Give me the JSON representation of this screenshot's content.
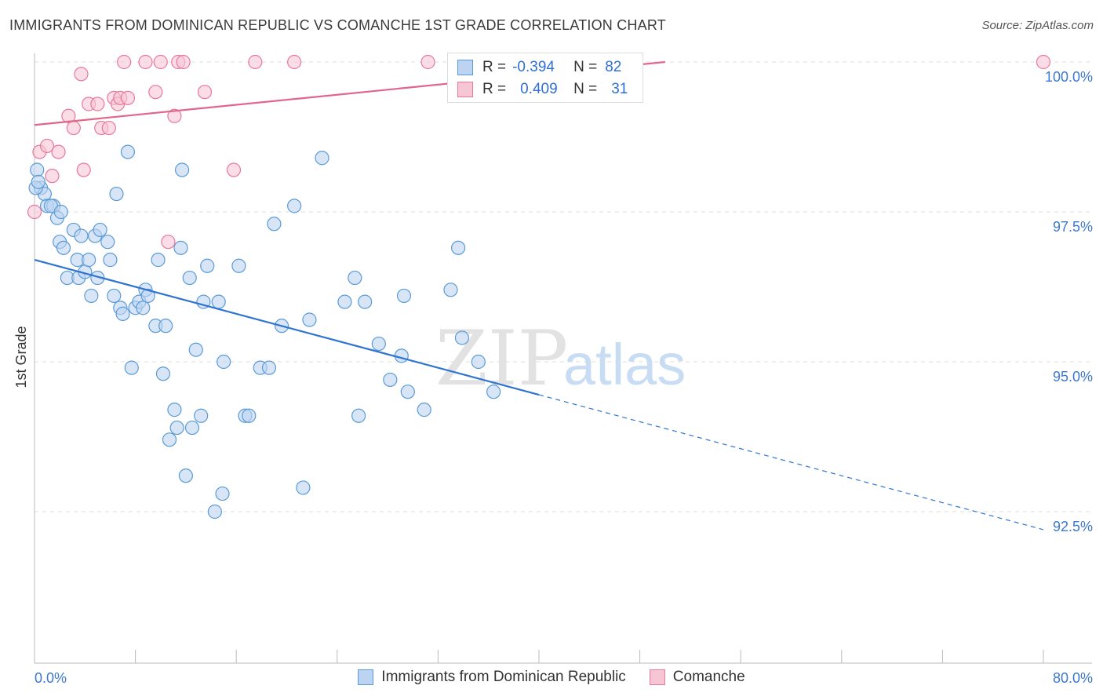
{
  "header": {
    "title": "IMMIGRANTS FROM DOMINICAN REPUBLIC VS COMANCHE 1ST GRADE CORRELATION CHART",
    "source": "Source: ZipAtlas.com"
  },
  "watermark": {
    "zip": "ZIP",
    "atlas": "atlas"
  },
  "legend": {
    "rows": [
      {
        "r_label": "R =",
        "r_value": "-0.394",
        "n_label": "N =",
        "n_value": "82",
        "color": "#5b9bd5",
        "fill": "#bcd4f2"
      },
      {
        "r_label": "R =",
        "r_value": "0.409",
        "n_label": "N =",
        "n_value": "31",
        "color": "#e8799b",
        "fill": "#f7c6d5"
      }
    ]
  },
  "bottom_legend": [
    {
      "label": "Immigrants from Dominican Republic",
      "color": "#5b9bd5",
      "fill": "#bcd4f2"
    },
    {
      "label": "Comanche",
      "color": "#e8799b",
      "fill": "#f7c6d5"
    }
  ],
  "chart_data": {
    "type": "scatter",
    "ylabel": "1st Grade",
    "x_tick_labels": {
      "left": "0.0%",
      "right": "80.0%"
    },
    "xlim": [
      0,
      80
    ],
    "ylim": [
      90.0,
      100.4
    ],
    "y_ticks": [
      {
        "value": 100.0,
        "label": "100.0%"
      },
      {
        "value": 97.5,
        "label": "97.5%"
      },
      {
        "value": 95.0,
        "label": "95.0%"
      },
      {
        "value": 92.5,
        "label": "92.5%"
      }
    ],
    "grid": true,
    "legend_position": "top-center",
    "series": [
      {
        "name": "Immigrants from Dominican Republic",
        "color": "#5b9bd5",
        "fill": "#bcd4f2",
        "trend": {
          "x0": 0,
          "y0": 96.7,
          "x1": 40,
          "y1": 94.45,
          "dash_x1": 80,
          "dash_y1": 92.2
        },
        "points": [
          [
            0.2,
            98.2
          ],
          [
            0.5,
            97.9
          ],
          [
            0.8,
            97.8
          ],
          [
            1.0,
            97.6
          ],
          [
            1.5,
            97.6
          ],
          [
            1.8,
            97.4
          ],
          [
            2.0,
            97.0
          ],
          [
            2.3,
            96.9
          ],
          [
            2.6,
            96.4
          ],
          [
            3.1,
            97.2
          ],
          [
            3.4,
            96.7
          ],
          [
            3.5,
            96.4
          ],
          [
            3.7,
            97.1
          ],
          [
            4.0,
            96.5
          ],
          [
            4.3,
            96.7
          ],
          [
            4.5,
            96.1
          ],
          [
            4.8,
            97.1
          ],
          [
            5.0,
            96.4
          ],
          [
            5.2,
            97.2
          ],
          [
            5.8,
            97.0
          ],
          [
            6.0,
            96.7
          ],
          [
            6.3,
            96.1
          ],
          [
            6.5,
            97.8
          ],
          [
            6.8,
            95.9
          ],
          [
            7.0,
            95.8
          ],
          [
            7.4,
            98.5
          ],
          [
            7.7,
            94.9
          ],
          [
            8.0,
            95.9
          ],
          [
            8.3,
            96.0
          ],
          [
            8.6,
            95.9
          ],
          [
            8.8,
            96.2
          ],
          [
            9.0,
            96.1
          ],
          [
            9.6,
            95.6
          ],
          [
            9.8,
            96.7
          ],
          [
            10.2,
            94.8
          ],
          [
            10.4,
            95.6
          ],
          [
            10.7,
            93.7
          ],
          [
            11.1,
            94.2
          ],
          [
            11.3,
            93.9
          ],
          [
            11.6,
            96.9
          ],
          [
            11.7,
            98.2
          ],
          [
            12.0,
            93.1
          ],
          [
            12.3,
            96.4
          ],
          [
            12.5,
            93.9
          ],
          [
            12.8,
            95.2
          ],
          [
            13.2,
            94.1
          ],
          [
            13.4,
            96.0
          ],
          [
            13.7,
            96.6
          ],
          [
            14.3,
            92.5
          ],
          [
            14.6,
            96.0
          ],
          [
            14.9,
            92.8
          ],
          [
            15.0,
            95.0
          ],
          [
            16.2,
            96.6
          ],
          [
            16.7,
            94.1
          ],
          [
            17.0,
            94.1
          ],
          [
            17.9,
            94.9
          ],
          [
            18.6,
            94.9
          ],
          [
            19.0,
            97.3
          ],
          [
            19.6,
            95.6
          ],
          [
            20.6,
            97.6
          ],
          [
            21.3,
            92.9
          ],
          [
            21.8,
            95.7
          ],
          [
            22.8,
            98.4
          ],
          [
            24.6,
            96.0
          ],
          [
            25.4,
            96.4
          ],
          [
            25.7,
            94.1
          ],
          [
            26.2,
            96.0
          ],
          [
            27.3,
            95.3
          ],
          [
            28.2,
            94.7
          ],
          [
            29.1,
            95.1
          ],
          [
            29.3,
            96.1
          ],
          [
            29.6,
            94.5
          ],
          [
            30.9,
            94.2
          ],
          [
            33.0,
            96.2
          ],
          [
            33.6,
            96.9
          ],
          [
            33.9,
            95.4
          ],
          [
            35.2,
            95.0
          ],
          [
            36.4,
            94.5
          ],
          [
            0.1,
            97.9
          ],
          [
            0.3,
            98.0
          ],
          [
            1.3,
            97.6
          ],
          [
            2.1,
            97.5
          ]
        ]
      },
      {
        "name": "Comanche",
        "color": "#e8799b",
        "fill": "#f7c6d5",
        "trend": {
          "x0": 0,
          "y0": 98.95,
          "x1": 50,
          "y1": 100.0
        },
        "points": [
          [
            0.0,
            97.5
          ],
          [
            0.4,
            98.5
          ],
          [
            1.0,
            98.6
          ],
          [
            1.4,
            98.1
          ],
          [
            1.9,
            98.5
          ],
          [
            2.7,
            99.1
          ],
          [
            3.1,
            98.9
          ],
          [
            3.7,
            99.8
          ],
          [
            3.9,
            98.2
          ],
          [
            4.3,
            99.3
          ],
          [
            5.0,
            99.3
          ],
          [
            5.3,
            98.9
          ],
          [
            5.9,
            98.9
          ],
          [
            6.3,
            99.4
          ],
          [
            6.6,
            99.3
          ],
          [
            6.8,
            99.4
          ],
          [
            7.1,
            100.0
          ],
          [
            7.4,
            99.4
          ],
          [
            8.8,
            100.0
          ],
          [
            9.6,
            99.5
          ],
          [
            10.0,
            100.0
          ],
          [
            10.6,
            97.0
          ],
          [
            11.1,
            99.1
          ],
          [
            11.4,
            100.0
          ],
          [
            11.8,
            100.0
          ],
          [
            13.5,
            99.5
          ],
          [
            15.8,
            98.2
          ],
          [
            17.5,
            100.0
          ],
          [
            20.6,
            100.0
          ],
          [
            31.2,
            100.0
          ],
          [
            80.0,
            100.0
          ]
        ]
      }
    ]
  }
}
